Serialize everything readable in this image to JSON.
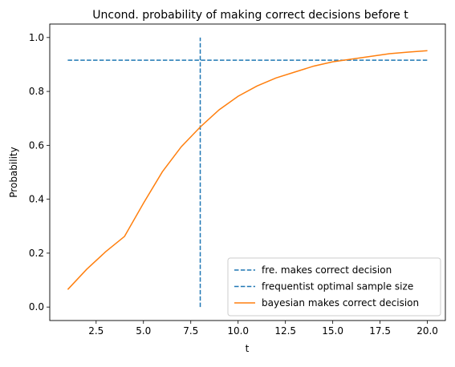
{
  "chart_data": {
    "type": "line",
    "title": "Uncond. probability of making correct decisions before t",
    "xlabel": "t",
    "ylabel": "Probability",
    "xlim": [
      0.05,
      20.95
    ],
    "ylim": [
      -0.05,
      1.05
    ],
    "xticks": [
      2.5,
      5.0,
      7.5,
      10.0,
      12.5,
      15.0,
      17.5,
      20.0
    ],
    "xtick_labels": [
      "2.5",
      "5.0",
      "7.5",
      "10.0",
      "12.5",
      "15.0",
      "17.5",
      "20.0"
    ],
    "yticks": [
      0.0,
      0.2,
      0.4,
      0.6,
      0.8,
      1.0
    ],
    "ytick_labels": [
      "0.0",
      "0.2",
      "0.4",
      "0.6",
      "0.8",
      "1.0"
    ],
    "grid": false,
    "legend_position": "lower-right",
    "series": [
      {
        "name": "fre. makes correct decision",
        "style": "dashed",
        "color": "#1f77b4",
        "x": [
          1,
          20
        ],
        "y": [
          0.916,
          0.916
        ]
      },
      {
        "name": "frequentist optimal sample size",
        "style": "dashed",
        "color": "#1f77b4",
        "x": [
          8,
          8
        ],
        "y": [
          0.0,
          1.0
        ]
      },
      {
        "name": "bayesian makes correct decision",
        "style": "solid",
        "color": "#ff7f0e",
        "x": [
          1,
          2,
          3,
          4,
          5,
          6,
          7,
          8,
          9,
          10,
          11,
          12,
          13,
          14,
          15,
          16,
          17,
          18,
          19,
          20
        ],
        "y": [
          0.065,
          0.14,
          0.205,
          0.262,
          0.385,
          0.502,
          0.595,
          0.668,
          0.732,
          0.782,
          0.82,
          0.85,
          0.872,
          0.894,
          0.91,
          0.92,
          0.93,
          0.94,
          0.946,
          0.951
        ]
      }
    ]
  }
}
